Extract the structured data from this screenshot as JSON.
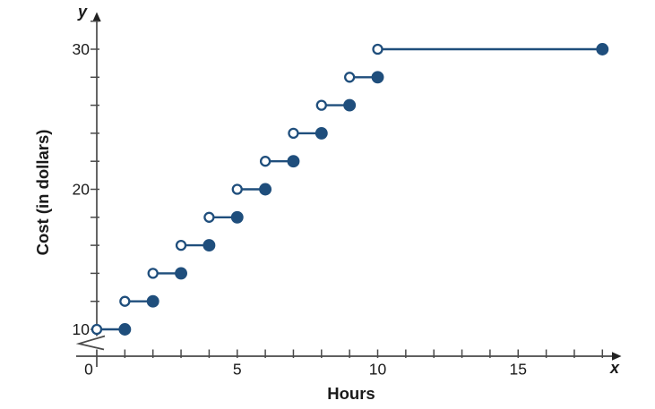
{
  "chart": {
    "ylabel": "Cost (in dollars)",
    "xlabel": "Hours",
    "y_letter": "y",
    "x_letter": "x"
  },
  "chart_data": {
    "type": "line",
    "variant": "step-function",
    "title": "",
    "xlabel": "Hours",
    "ylabel": "Cost (in dollars)",
    "x_axis": {
      "letter": "x",
      "min": 0,
      "max": 18,
      "tick_step": 1,
      "labeled_ticks": [
        0,
        5,
        10,
        15
      ]
    },
    "y_axis": {
      "letter": "y",
      "min": 10,
      "max": 32,
      "tick_step": 2,
      "labeled_ticks": [
        10,
        20,
        30
      ],
      "break_between_origin_and_first_tick": true
    },
    "grid": false,
    "legend": "none",
    "colors": {
      "series": "#1f4e7c",
      "axis": "#4a4a4a",
      "text": "#1a1a1a",
      "background": "#ffffff"
    },
    "segments": [
      {
        "x_start": 0,
        "x_end": 1,
        "y": 10,
        "start_marker": "open",
        "end_marker": "closed"
      },
      {
        "x_start": 1,
        "x_end": 2,
        "y": 12,
        "start_marker": "open",
        "end_marker": "closed"
      },
      {
        "x_start": 2,
        "x_end": 3,
        "y": 14,
        "start_marker": "open",
        "end_marker": "closed"
      },
      {
        "x_start": 3,
        "x_end": 4,
        "y": 16,
        "start_marker": "open",
        "end_marker": "closed"
      },
      {
        "x_start": 4,
        "x_end": 5,
        "y": 18,
        "start_marker": "open",
        "end_marker": "closed"
      },
      {
        "x_start": 5,
        "x_end": 6,
        "y": 20,
        "start_marker": "open",
        "end_marker": "closed"
      },
      {
        "x_start": 6,
        "x_end": 7,
        "y": 22,
        "start_marker": "open",
        "end_marker": "closed"
      },
      {
        "x_start": 7,
        "x_end": 8,
        "y": 24,
        "start_marker": "open",
        "end_marker": "closed"
      },
      {
        "x_start": 8,
        "x_end": 9,
        "y": 26,
        "start_marker": "open",
        "end_marker": "closed"
      },
      {
        "x_start": 9,
        "x_end": 10,
        "y": 28,
        "start_marker": "open",
        "end_marker": "closed"
      },
      {
        "x_start": 10,
        "x_end": 18,
        "y": 30,
        "start_marker": "open",
        "end_marker": "closed"
      }
    ]
  }
}
